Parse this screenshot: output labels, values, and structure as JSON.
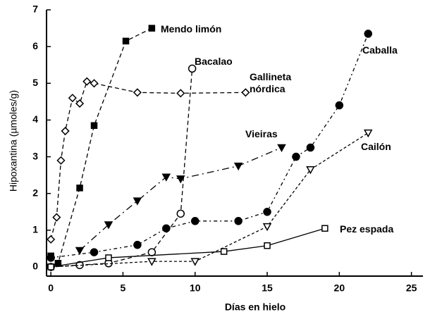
{
  "chart_data": {
    "type": "line",
    "xlabel": "Días en hielo",
    "ylabel": "Hipoxantina (µmoles/g)",
    "xlim": [
      -0.3,
      25.8
    ],
    "ylim": [
      -0.25,
      7
    ],
    "xticks": [
      0,
      5,
      10,
      15,
      20,
      25
    ],
    "yticks": [
      0,
      1,
      2,
      3,
      4,
      5,
      6,
      7
    ],
    "series": [
      {
        "name": "Mendo limón",
        "color": "#000000",
        "marker": "square-filled",
        "x": [
          0,
          0.5,
          2,
          3,
          5.2,
          7
        ],
        "values": [
          0.3,
          0.1,
          2.15,
          3.85,
          6.15,
          6.5
        ]
      },
      {
        "name": "Bacalao",
        "color": "#000000",
        "marker": "circle-open",
        "x": [
          0,
          2,
          4,
          7,
          9,
          9.8
        ],
        "values": [
          0,
          0.05,
          0.1,
          0.4,
          1.45,
          5.4
        ]
      },
      {
        "name": "Gallineta nórdica",
        "color": "#000000",
        "marker": "diamond-open",
        "x": [
          0,
          0.4,
          0.7,
          1,
          1.5,
          2,
          2.5,
          3,
          6,
          9,
          13.5
        ],
        "values": [
          0.75,
          1.35,
          2.9,
          3.7,
          4.6,
          4.45,
          5.05,
          5,
          4.75,
          4.73,
          4.75
        ]
      },
      {
        "name": "Vieiras",
        "color": "#000000",
        "marker": "triangle-filled",
        "x": [
          2,
          4,
          6,
          8,
          9,
          13,
          16
        ],
        "values": [
          0.45,
          1.15,
          1.8,
          2.45,
          2.4,
          2.75,
          3.25
        ]
      },
      {
        "name": "Caballa",
        "color": "#000000",
        "marker": "circle-filled",
        "x": [
          0,
          3,
          6,
          8,
          10,
          13,
          15,
          17,
          18,
          20,
          22
        ],
        "values": [
          0.25,
          0.4,
          0.6,
          1.05,
          1.25,
          1.25,
          1.5,
          3,
          3.25,
          4.4,
          6.35
        ]
      },
      {
        "name": "Cailón",
        "color": "#000000",
        "marker": "triangle-open",
        "x": [
          0,
          7,
          10,
          15,
          18,
          22
        ],
        "values": [
          0,
          0.15,
          0.15,
          1.1,
          2.65,
          3.65
        ]
      },
      {
        "name": "Pez espada",
        "color": "#000000",
        "marker": "square-open",
        "x": [
          0,
          4,
          12,
          15,
          19
        ],
        "values": [
          0,
          0.25,
          0.42,
          0.58,
          1.05
        ]
      }
    ]
  }
}
